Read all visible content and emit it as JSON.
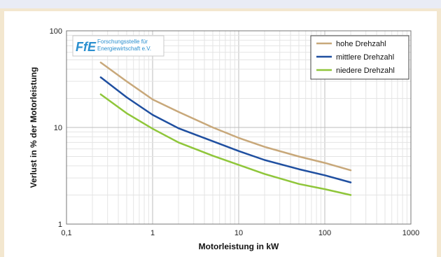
{
  "chart_data": {
    "type": "line",
    "xscale": "log",
    "yscale": "log",
    "xlabel": "Motorleistung in kW",
    "ylabel": "Verlust in % der Motorleistung",
    "xlim": [
      0.1,
      1000
    ],
    "ylim": [
      1,
      100
    ],
    "xticks": [
      0.1,
      1,
      10,
      100,
      1000
    ],
    "xtick_labels": [
      "0,1",
      "1",
      "10",
      "100",
      "1000"
    ],
    "yticks": [
      1,
      10,
      100
    ],
    "ytick_labels": [
      "1",
      "10",
      "100"
    ],
    "grid": true,
    "legend_position": "top-right",
    "x": [
      0.25,
      0.5,
      1,
      2,
      5,
      10,
      20,
      50,
      100,
      200
    ],
    "series": [
      {
        "name": "hohe Drehzahl",
        "color": "#c8a87a",
        "values": [
          47,
          30,
          19.5,
          14.5,
          10,
          7.8,
          6.3,
          5,
          4.3,
          3.6
        ]
      },
      {
        "name": "mittlere Drehzahl",
        "color": "#1f4fa0",
        "values": [
          33,
          20.5,
          13.5,
          9.8,
          7.2,
          5.7,
          4.6,
          3.7,
          3.2,
          2.7
        ]
      },
      {
        "name": "niedere Drehzahl",
        "color": "#8fc63a",
        "values": [
          22,
          14,
          9.7,
          7,
          5.1,
          4.1,
          3.3,
          2.6,
          2.3,
          2.0
        ]
      }
    ]
  },
  "logo": {
    "mark": "FfE",
    "line1": "Forschungsstelle für",
    "line2": "Energiewirtschaft e.V.",
    "color": "#2a8fcf"
  }
}
